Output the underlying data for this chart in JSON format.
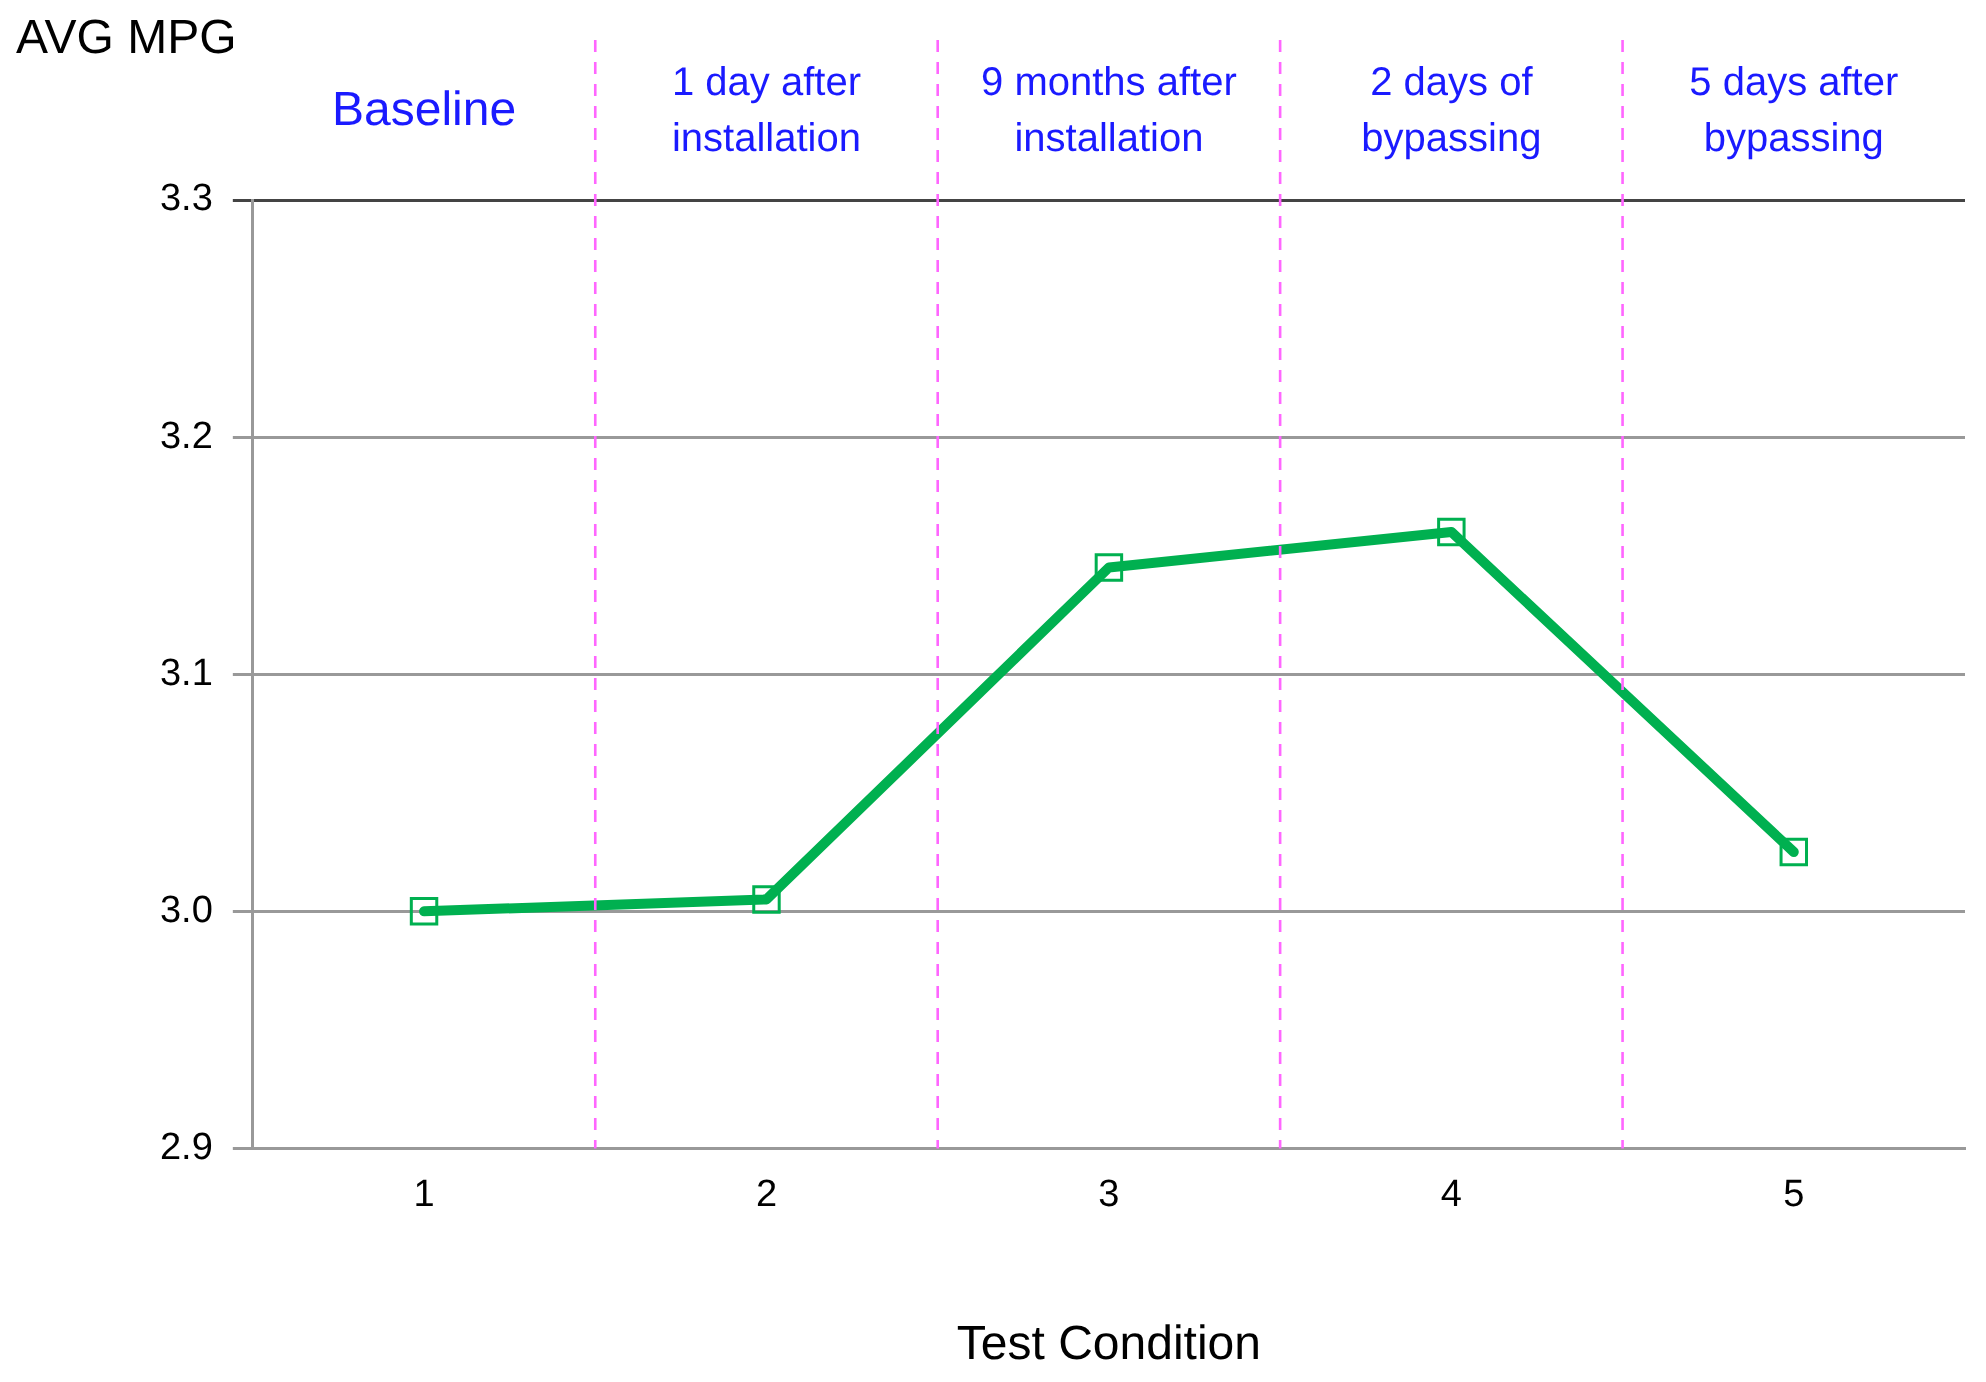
{
  "chart_data": {
    "type": "line",
    "xlabel": "Test Condition",
    "ylabel": "AVG MPG",
    "x": [
      1,
      2,
      3,
      4,
      5
    ],
    "xlim": [
      0.5,
      5.5
    ],
    "xticks": [
      1,
      2,
      3,
      4,
      5
    ],
    "ylim": [
      2.9,
      3.3
    ],
    "yticks": [
      {
        "value": 2.9,
        "label": "2.9"
      },
      {
        "value": 3.0,
        "label": "3.0"
      },
      {
        "value": 3.1,
        "label": "3.1"
      },
      {
        "value": 3.2,
        "label": "3.2"
      },
      {
        "value": 3.3,
        "label": "3.3"
      }
    ],
    "series": [
      {
        "color": "#00b050",
        "values": [
          3.0,
          3.005,
          3.145,
          3.16,
          3.025
        ]
      }
    ],
    "marker": "square",
    "line_style": "solid",
    "grid": "y",
    "legend": false,
    "ref_lines": [
      {
        "axis": "x",
        "value": 1.5,
        "color": "#ff66ff",
        "line_style": "dashed"
      },
      {
        "axis": "x",
        "value": 2.5,
        "color": "#ff66ff",
        "line_style": "dashed"
      },
      {
        "axis": "x",
        "value": 3.5,
        "color": "#ff66ff",
        "line_style": "dashed"
      },
      {
        "axis": "x",
        "value": 4.5,
        "color": "#ff66ff",
        "line_style": "dashed"
      }
    ],
    "annotations": [
      "Baseline",
      "1 day after installation",
      "9 months after installation",
      "2 days of bypassing",
      "5 days after bypassing"
    ]
  }
}
